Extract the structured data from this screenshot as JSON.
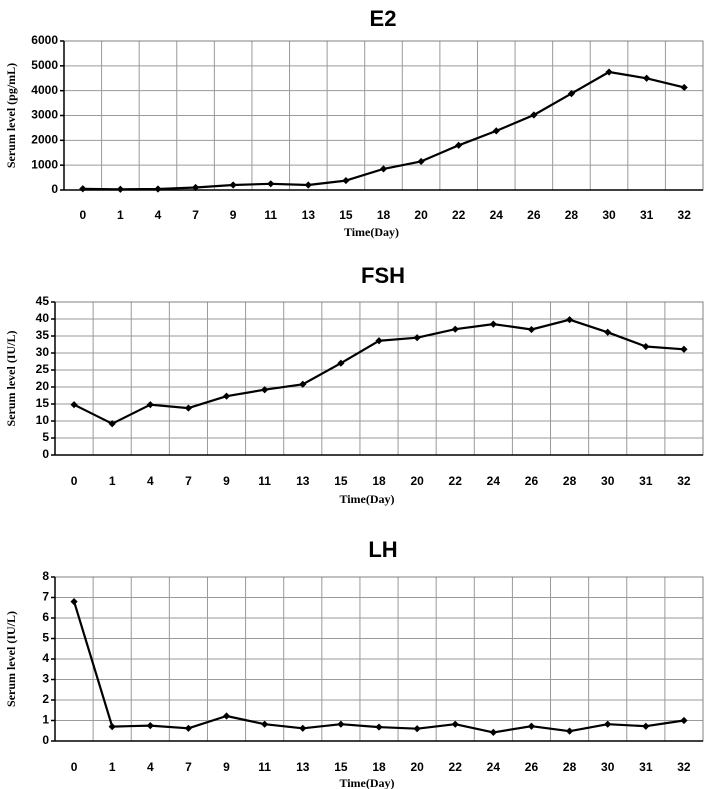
{
  "chart_data": [
    {
      "type": "line",
      "title": "E2",
      "xlabel": "Time(Day)",
      "ylabel": "Serum level (pg/mL)",
      "categories": [
        "0",
        "1",
        "4",
        "7",
        "9",
        "11",
        "13",
        "15",
        "18",
        "20",
        "22",
        "24",
        "26",
        "28",
        "30",
        "31",
        "32"
      ],
      "values": [
        50,
        30,
        40,
        100,
        200,
        250,
        200,
        380,
        850,
        1150,
        1800,
        2380,
        3020,
        3880,
        4750,
        4500,
        4130
      ],
      "ylim": [
        0,
        6000
      ],
      "yticks": [
        0,
        1000,
        2000,
        3000,
        4000,
        5000,
        6000
      ],
      "grid": true,
      "color": "#000000"
    },
    {
      "type": "line",
      "title": "FSH",
      "xlabel": "Time(Day)",
      "ylabel": "Serum level (IU/L)",
      "categories": [
        "0",
        "1",
        "4",
        "7",
        "9",
        "11",
        "13",
        "15",
        "18",
        "20",
        "22",
        "24",
        "26",
        "28",
        "30",
        "31",
        "32"
      ],
      "values": [
        14.8,
        9.2,
        14.8,
        13.8,
        17.3,
        19.2,
        20.8,
        27.0,
        33.6,
        34.5,
        37.0,
        38.5,
        36.9,
        39.8,
        36.1,
        31.9,
        31.1
      ],
      "ylim": [
        0,
        45
      ],
      "yticks": [
        0,
        5,
        10,
        15,
        20,
        25,
        30,
        35,
        40,
        45
      ],
      "grid": true,
      "color": "#000000"
    },
    {
      "type": "line",
      "title": "LH",
      "xlabel": "Time(Day)",
      "ylabel": "Serum level (IU/L)",
      "categories": [
        "0",
        "1",
        "4",
        "7",
        "9",
        "11",
        "13",
        "15",
        "18",
        "20",
        "22",
        "24",
        "26",
        "28",
        "30",
        "31",
        "32"
      ],
      "values": [
        6.8,
        0.7,
        0.75,
        0.62,
        1.22,
        0.82,
        0.62,
        0.82,
        0.68,
        0.6,
        0.82,
        0.42,
        0.72,
        0.48,
        0.82,
        0.72,
        1.0
      ],
      "ylim": [
        0,
        8
      ],
      "yticks": [
        0,
        1,
        2,
        3,
        4,
        5,
        6,
        7,
        8
      ],
      "grid": true,
      "color": "#000000"
    }
  ]
}
